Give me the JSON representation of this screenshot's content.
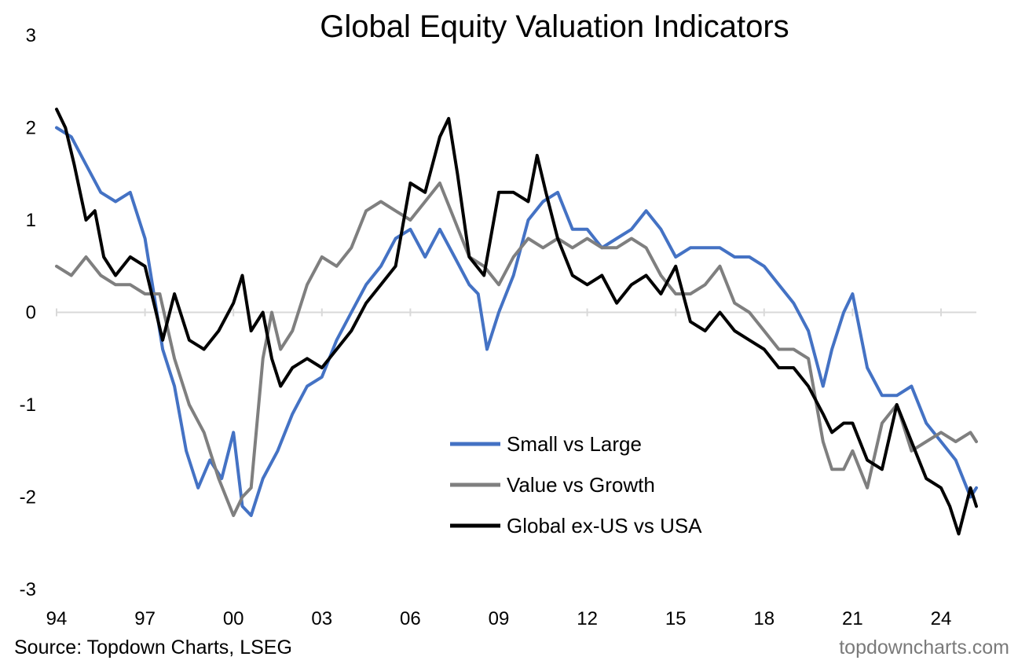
{
  "chart_data": {
    "type": "line",
    "title": "Global Equity Valuation Indicators",
    "xlabel": "",
    "ylabel": "",
    "xlim": [
      1994,
      2025.2
    ],
    "ylim": [
      -3,
      3
    ],
    "y_ticks": [
      "3",
      "2",
      "1",
      "0",
      "-1",
      "-2",
      "-3"
    ],
    "y_tick_values": [
      3,
      2,
      1,
      0,
      -1,
      -2,
      -3
    ],
    "x_ticks": [
      "94",
      "97",
      "00",
      "03",
      "06",
      "09",
      "12",
      "15",
      "18",
      "21",
      "24"
    ],
    "x_tick_values": [
      1994,
      1997,
      2000,
      2003,
      2006,
      2009,
      2012,
      2015,
      2018,
      2021,
      2024
    ],
    "grid": false,
    "legend_position": "bottom-center",
    "series": [
      {
        "name": "Small vs Large",
        "color": "#4472c4",
        "x": [
          1994,
          1994.5,
          1995,
          1995.5,
          1996,
          1996.5,
          1997,
          1997.3,
          1997.6,
          1998,
          1998.4,
          1998.8,
          1999.2,
          1999.6,
          2000,
          2000.3,
          2000.6,
          2001,
          2001.5,
          2002,
          2002.5,
          2003,
          2003.5,
          2004,
          2004.5,
          2005,
          2005.5,
          2006,
          2006.5,
          2007,
          2007.5,
          2008,
          2008.3,
          2008.6,
          2009,
          2009.5,
          2010,
          2010.5,
          2011,
          2011.5,
          2012,
          2012.5,
          2013,
          2013.5,
          2014,
          2014.5,
          2015,
          2015.5,
          2016,
          2016.5,
          2017,
          2017.5,
          2018,
          2018.5,
          2019,
          2019.5,
          2020,
          2020.3,
          2020.7,
          2021,
          2021.5,
          2022,
          2022.5,
          2023,
          2023.5,
          2024,
          2024.5,
          2025,
          2025.2
        ],
        "values": [
          2.0,
          1.9,
          1.6,
          1.3,
          1.2,
          1.3,
          0.8,
          0.2,
          -0.4,
          -0.8,
          -1.5,
          -1.9,
          -1.6,
          -1.8,
          -1.3,
          -2.1,
          -2.2,
          -1.8,
          -1.5,
          -1.1,
          -0.8,
          -0.7,
          -0.3,
          0.0,
          0.3,
          0.5,
          0.8,
          0.9,
          0.6,
          0.9,
          0.6,
          0.3,
          0.2,
          -0.4,
          0.0,
          0.4,
          1.0,
          1.2,
          1.3,
          0.9,
          0.9,
          0.7,
          0.8,
          0.9,
          1.1,
          0.9,
          0.6,
          0.7,
          0.7,
          0.7,
          0.6,
          0.6,
          0.5,
          0.3,
          0.1,
          -0.2,
          -0.8,
          -0.4,
          0.0,
          0.2,
          -0.6,
          -0.9,
          -0.9,
          -0.8,
          -1.2,
          -1.4,
          -1.6,
          -2.0,
          -1.9
        ]
      },
      {
        "name": "Value vs Growth",
        "color": "#7f7f7f",
        "x": [
          1994,
          1994.5,
          1995,
          1995.5,
          1996,
          1996.5,
          1997,
          1997.5,
          1998,
          1998.5,
          1999,
          1999.5,
          2000,
          2000.3,
          2000.6,
          2001,
          2001.3,
          2001.6,
          2002,
          2002.5,
          2003,
          2003.5,
          2004,
          2004.5,
          2005,
          2005.5,
          2006,
          2006.5,
          2007,
          2007.5,
          2008,
          2008.5,
          2009,
          2009.5,
          2010,
          2010.5,
          2011,
          2011.5,
          2012,
          2012.5,
          2013,
          2013.5,
          2014,
          2014.5,
          2015,
          2015.5,
          2016,
          2016.5,
          2017,
          2017.5,
          2018,
          2018.5,
          2019,
          2019.5,
          2020,
          2020.3,
          2020.7,
          2021,
          2021.5,
          2022,
          2022.5,
          2023,
          2023.5,
          2024,
          2024.5,
          2025,
          2025.2
        ],
        "values": [
          0.5,
          0.4,
          0.6,
          0.4,
          0.3,
          0.3,
          0.2,
          0.2,
          -0.5,
          -1.0,
          -1.3,
          -1.8,
          -2.2,
          -2.0,
          -1.9,
          -0.5,
          0.0,
          -0.4,
          -0.2,
          0.3,
          0.6,
          0.5,
          0.7,
          1.1,
          1.2,
          1.1,
          1.0,
          1.2,
          1.4,
          1.0,
          0.6,
          0.5,
          0.3,
          0.6,
          0.8,
          0.7,
          0.8,
          0.7,
          0.8,
          0.7,
          0.7,
          0.8,
          0.7,
          0.4,
          0.2,
          0.2,
          0.3,
          0.5,
          0.1,
          0.0,
          -0.2,
          -0.4,
          -0.4,
          -0.5,
          -1.4,
          -1.7,
          -1.7,
          -1.5,
          -1.9,
          -1.2,
          -1.0,
          -1.5,
          -1.4,
          -1.3,
          -1.4,
          -1.3,
          -1.4
        ]
      },
      {
        "name": "Global ex-US vs USA",
        "color": "#000000",
        "x": [
          1994,
          1994.3,
          1994.6,
          1995,
          1995.3,
          1995.6,
          1996,
          1996.5,
          1997,
          1997.3,
          1997.6,
          1998,
          1998.5,
          1999,
          1999.5,
          2000,
          2000.3,
          2000.6,
          2001,
          2001.3,
          2001.6,
          2002,
          2002.5,
          2003,
          2003.5,
          2004,
          2004.5,
          2005,
          2005.5,
          2006,
          2006.5,
          2007,
          2007.3,
          2007.6,
          2008,
          2008.5,
          2009,
          2009.5,
          2010,
          2010.3,
          2010.6,
          2011,
          2011.5,
          2012,
          2012.5,
          2013,
          2013.5,
          2014,
          2014.5,
          2015,
          2015.5,
          2016,
          2016.5,
          2017,
          2017.5,
          2018,
          2018.5,
          2019,
          2019.5,
          2020,
          2020.3,
          2020.7,
          2021,
          2021.5,
          2022,
          2022.5,
          2023,
          2023.5,
          2024,
          2024.3,
          2024.6,
          2025,
          2025.2
        ],
        "values": [
          2.2,
          2.0,
          1.6,
          1.0,
          1.1,
          0.6,
          0.4,
          0.6,
          0.5,
          0.1,
          -0.3,
          0.2,
          -0.3,
          -0.4,
          -0.2,
          0.1,
          0.4,
          -0.2,
          0.0,
          -0.5,
          -0.8,
          -0.6,
          -0.5,
          -0.6,
          -0.4,
          -0.2,
          0.1,
          0.3,
          0.5,
          1.4,
          1.3,
          1.9,
          2.1,
          1.5,
          0.6,
          0.4,
          1.3,
          1.3,
          1.2,
          1.7,
          1.3,
          0.8,
          0.4,
          0.3,
          0.4,
          0.1,
          0.3,
          0.4,
          0.2,
          0.5,
          -0.1,
          -0.2,
          0.0,
          -0.2,
          -0.3,
          -0.4,
          -0.6,
          -0.6,
          -0.8,
          -1.1,
          -1.3,
          -1.2,
          -1.2,
          -1.6,
          -1.7,
          -1.0,
          -1.4,
          -1.8,
          -1.9,
          -2.1,
          -2.4,
          -1.9,
          -2.1
        ]
      }
    ]
  },
  "footer": {
    "source": "Source: Topdown Charts, LSEG",
    "brand": "topdowncharts.com"
  }
}
